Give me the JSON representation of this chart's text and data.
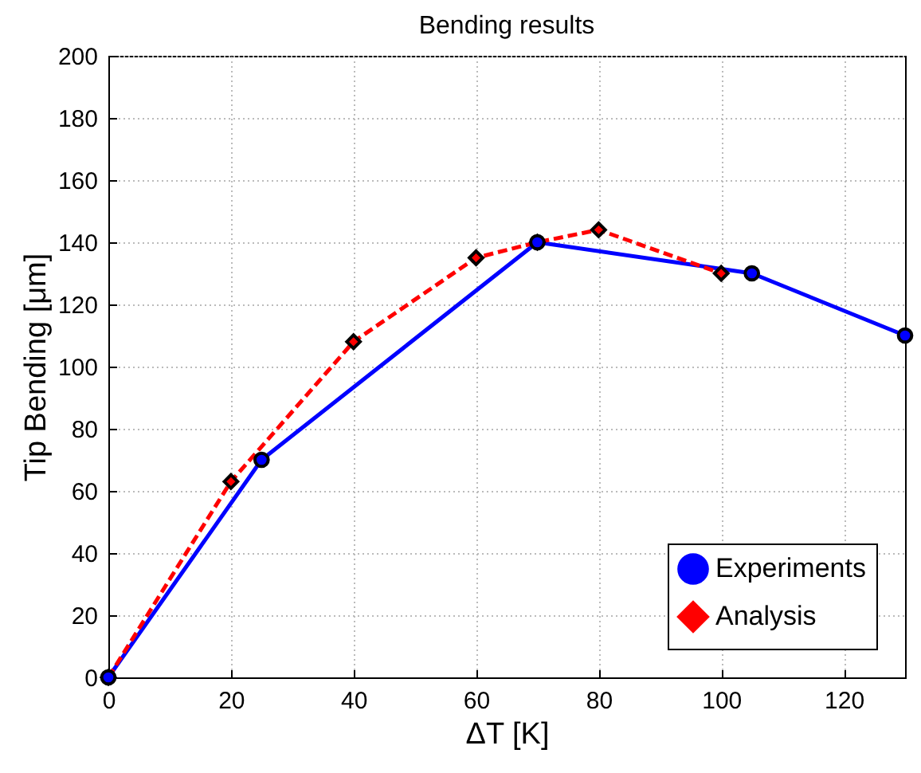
{
  "chart_data": {
    "type": "line",
    "title": "Bending results",
    "xlabel": "ΔT [K]",
    "ylabel": "Tip Bending  [μm]",
    "xlim": [
      0,
      130
    ],
    "xticks": [
      0,
      20,
      40,
      60,
      80,
      100,
      120
    ],
    "ylim": [
      0,
      200
    ],
    "yticks": [
      0,
      20,
      40,
      60,
      80,
      100,
      120,
      140,
      160,
      180,
      200
    ],
    "grid": true,
    "legend": "bottom right",
    "series": [
      {
        "name": "Experiments",
        "color": "#0000ff",
        "marker": "circle",
        "line_style": "solid",
        "x": [
          0,
          25,
          70,
          105,
          130
        ],
        "values": [
          0,
          70,
          140,
          130,
          110
        ]
      },
      {
        "name": "Analysis",
        "color": "#ff0000",
        "marker": "diamond",
        "line_style": "dashed",
        "x": [
          0,
          20,
          40,
          60,
          70,
          80,
          100
        ],
        "values": [
          0,
          63,
          108,
          135,
          140,
          144,
          130
        ]
      }
    ]
  }
}
